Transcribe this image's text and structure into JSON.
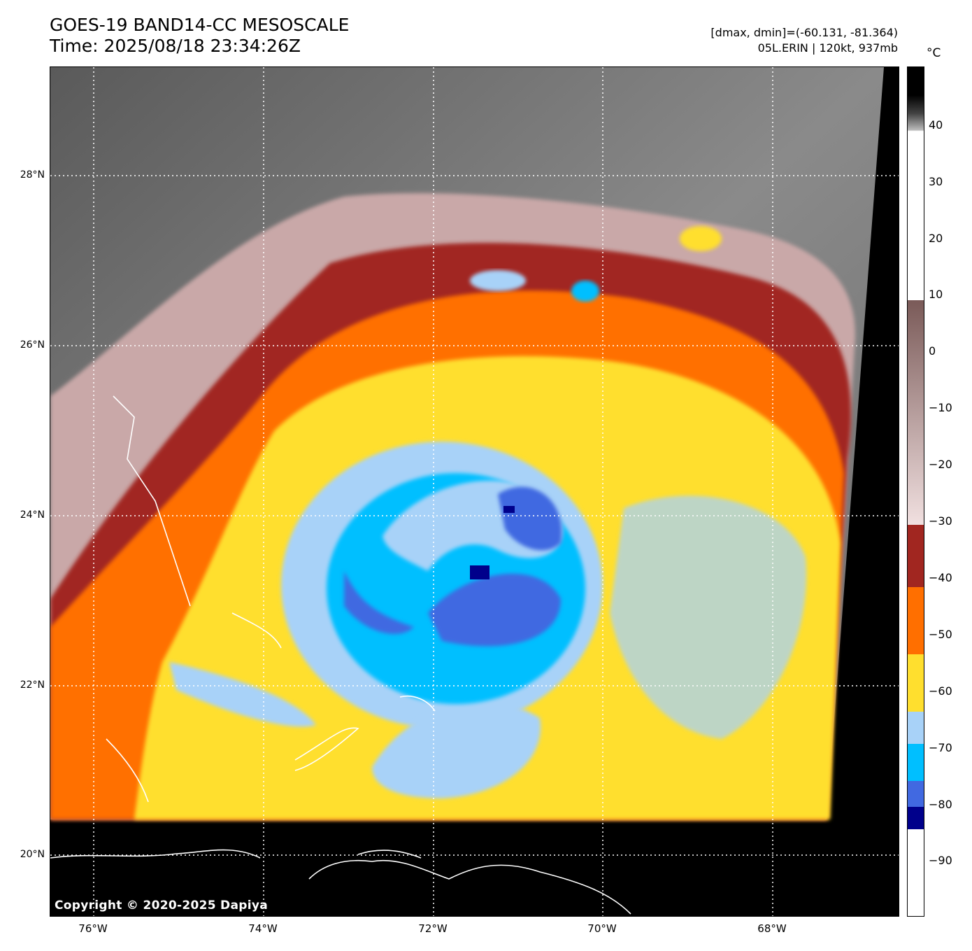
{
  "header": {
    "title_line1": "GOES-19 BAND14-CC MESOSCALE",
    "title_line2": "Time: 2025/08/18 23:34:26Z",
    "info_line1": "[dmax, dmin]=(-60.131, -81.364)",
    "info_line2": "05L.ERIN | 120kt, 937mb"
  },
  "map": {
    "lat_labels": [
      "28°N",
      "26°N",
      "24°N",
      "22°N",
      "20°N"
    ],
    "lon_labels": [
      "76°W",
      "74°W",
      "72°W",
      "70°W",
      "68°W"
    ],
    "copyright": "Copyright © 2020-2025 Dapiya"
  },
  "colorbar": {
    "unit": "°C",
    "ticks": [
      "40",
      "30",
      "20",
      "10",
      "0",
      "−10",
      "−20",
      "−30",
      "−40",
      "−50",
      "−60",
      "−70",
      "−80",
      "−90"
    ],
    "colors": {
      "warm_black": "#000000",
      "gray": "#7a7a7a",
      "white": "#ffffff",
      "pink": "#c9a8a8",
      "dark_red": "#a12620",
      "orange": "#ff6f00",
      "yellow": "#ffdf2e",
      "light_blue": "#a8d2f8",
      "cyan": "#00bfff",
      "royal_blue": "#4169e1",
      "navy": "#00008b"
    }
  }
}
